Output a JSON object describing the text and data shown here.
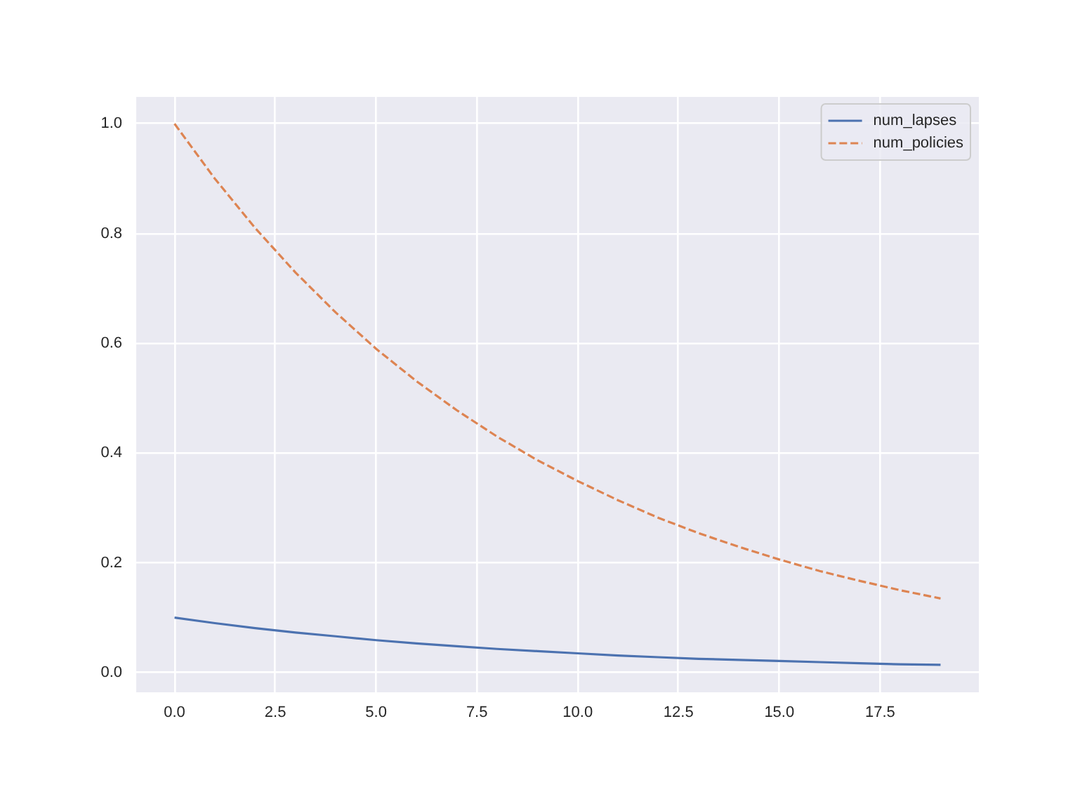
{
  "chart_data": {
    "type": "line",
    "x": [
      0,
      1,
      2,
      3,
      4,
      5,
      6,
      7,
      8,
      9,
      10,
      11,
      12,
      13,
      14,
      15,
      16,
      17,
      18,
      19
    ],
    "xlim": [
      -0.95,
      19.95
    ],
    "xticks": [
      {
        "value": 0,
        "label": "0.0"
      },
      {
        "value": 2.5,
        "label": "2.5"
      },
      {
        "value": 5,
        "label": "5.0"
      },
      {
        "value": 7.5,
        "label": "7.5"
      },
      {
        "value": 10,
        "label": "10.0"
      },
      {
        "value": 12.5,
        "label": "12.5"
      },
      {
        "value": 15,
        "label": "15.0"
      },
      {
        "value": 17.5,
        "label": "17.5"
      }
    ],
    "ylim": [
      -0.036,
      1.049
    ],
    "yticks": [
      {
        "value": 0,
        "label": "0.0"
      },
      {
        "value": 0.2,
        "label": "0.2"
      },
      {
        "value": 0.4,
        "label": "0.4"
      },
      {
        "value": 0.6,
        "label": "0.6"
      },
      {
        "value": 0.8,
        "label": "0.8"
      },
      {
        "value": 1,
        "label": "1.0"
      }
    ],
    "grid": true,
    "legend": "top right",
    "series": [
      {
        "name": "num_lapses",
        "color": "#4c72b0",
        "line_style": "solid",
        "values": [
          0.1,
          0.09,
          0.081,
          0.073,
          0.066,
          0.059,
          0.053,
          0.048,
          0.043,
          0.039,
          0.035,
          0.031,
          0.028,
          0.025,
          0.023,
          0.021,
          0.019,
          0.017,
          0.015,
          0.014
        ]
      },
      {
        "name": "num_policies",
        "color": "#dd8452",
        "line_style": "dashed",
        "values": [
          1.0,
          0.9,
          0.81,
          0.729,
          0.656,
          0.59,
          0.531,
          0.478,
          0.43,
          0.387,
          0.349,
          0.314,
          0.282,
          0.254,
          0.229,
          0.206,
          0.185,
          0.167,
          0.15,
          0.135
        ]
      }
    ]
  }
}
